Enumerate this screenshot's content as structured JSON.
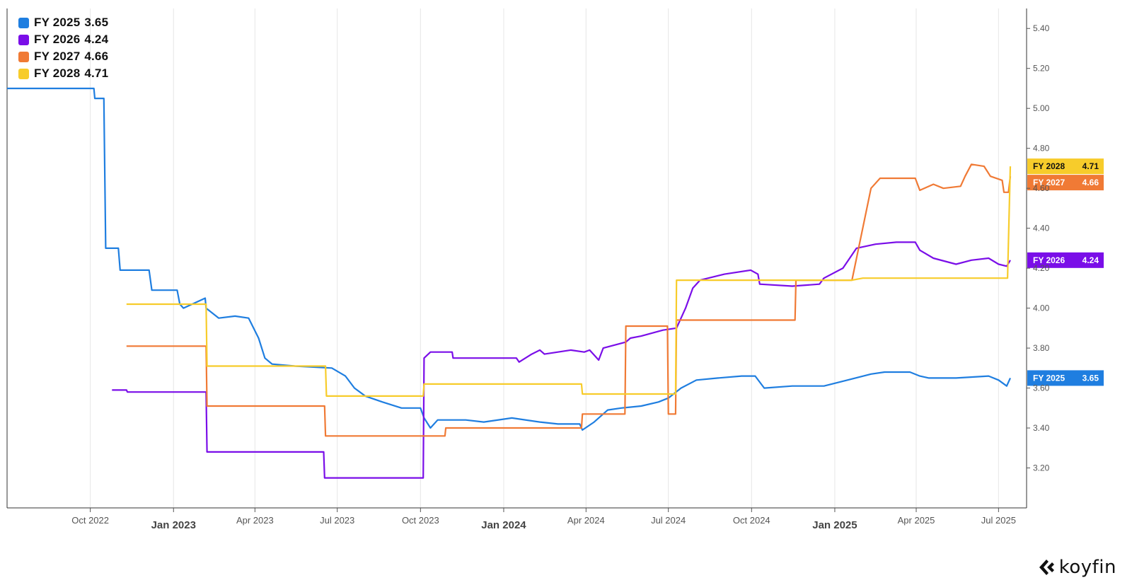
{
  "chart_data": {
    "type": "line",
    "x_axis": {
      "type": "date",
      "range": [
        "2022-07-01",
        "2025-08-01"
      ],
      "ticks": [
        {
          "date": "2022-10-01",
          "label": "Oct 2022",
          "major": false
        },
        {
          "date": "2023-01-01",
          "label": "Jan 2023",
          "major": true
        },
        {
          "date": "2023-04-01",
          "label": "Apr 2023",
          "major": false
        },
        {
          "date": "2023-07-01",
          "label": "Jul 2023",
          "major": false
        },
        {
          "date": "2023-10-01",
          "label": "Oct 2023",
          "major": false
        },
        {
          "date": "2024-01-01",
          "label": "Jan 2024",
          "major": true
        },
        {
          "date": "2024-04-01",
          "label": "Apr 2024",
          "major": false
        },
        {
          "date": "2024-07-01",
          "label": "Jul 2024",
          "major": false
        },
        {
          "date": "2024-10-01",
          "label": "Oct 2024",
          "major": false
        },
        {
          "date": "2025-01-01",
          "label": "Jan 2025",
          "major": true
        },
        {
          "date": "2025-04-01",
          "label": "Apr 2025",
          "major": false
        },
        {
          "date": "2025-07-01",
          "label": "Jul 2025",
          "major": false
        }
      ]
    },
    "y_axis": {
      "position": "right",
      "range": [
        3.0,
        5.5
      ],
      "ticks": [
        "5.40",
        "5.20",
        "5.00",
        "4.80",
        "4.60",
        "4.40",
        "4.20",
        "4.00",
        "3.80",
        "3.60",
        "3.40",
        "3.20"
      ]
    },
    "grid": "vertical",
    "legend_position": "top-left",
    "series": [
      {
        "name": "FY 2025",
        "last": "3.65",
        "color": "#1f7ee0",
        "points": [
          [
            "2022-07-01",
            5.1
          ],
          [
            "2022-10-05",
            5.1
          ],
          [
            "2022-10-06",
            5.05
          ],
          [
            "2022-10-16",
            5.05
          ],
          [
            "2022-10-18",
            4.3
          ],
          [
            "2022-11-01",
            4.3
          ],
          [
            "2022-11-03",
            4.19
          ],
          [
            "2022-12-05",
            4.19
          ],
          [
            "2022-12-08",
            4.09
          ],
          [
            "2023-01-05",
            4.09
          ],
          [
            "2023-01-08",
            4.02
          ],
          [
            "2023-01-12",
            4.0
          ],
          [
            "2023-02-05",
            4.05
          ],
          [
            "2023-02-06",
            4.0
          ],
          [
            "2023-02-20",
            3.95
          ],
          [
            "2023-03-10",
            3.96
          ],
          [
            "2023-03-25",
            3.95
          ],
          [
            "2023-04-05",
            3.85
          ],
          [
            "2023-04-12",
            3.75
          ],
          [
            "2023-04-20",
            3.72
          ],
          [
            "2023-05-15",
            3.71
          ],
          [
            "2023-06-25",
            3.7
          ],
          [
            "2023-07-10",
            3.66
          ],
          [
            "2023-07-20",
            3.6
          ],
          [
            "2023-08-01",
            3.56
          ],
          [
            "2023-08-20",
            3.53
          ],
          [
            "2023-09-10",
            3.5
          ],
          [
            "2023-10-01",
            3.5
          ],
          [
            "2023-10-05",
            3.45
          ],
          [
            "2023-10-12",
            3.4
          ],
          [
            "2023-10-20",
            3.44
          ],
          [
            "2023-11-20",
            3.44
          ],
          [
            "2023-12-10",
            3.43
          ],
          [
            "2024-01-10",
            3.45
          ],
          [
            "2024-02-10",
            3.43
          ],
          [
            "2024-03-01",
            3.42
          ],
          [
            "2024-03-25",
            3.42
          ],
          [
            "2024-03-28",
            3.39
          ],
          [
            "2024-04-10",
            3.43
          ],
          [
            "2024-04-25",
            3.49
          ],
          [
            "2024-05-10",
            3.5
          ],
          [
            "2024-06-01",
            3.51
          ],
          [
            "2024-06-20",
            3.53
          ],
          [
            "2024-07-01",
            3.55
          ],
          [
            "2024-07-15",
            3.6
          ],
          [
            "2024-08-01",
            3.64
          ],
          [
            "2024-08-25",
            3.65
          ],
          [
            "2024-09-20",
            3.66
          ],
          [
            "2024-10-05",
            3.66
          ],
          [
            "2024-10-15",
            3.6
          ],
          [
            "2024-11-15",
            3.61
          ],
          [
            "2024-12-20",
            3.61
          ],
          [
            "2025-01-15",
            3.64
          ],
          [
            "2025-02-10",
            3.67
          ],
          [
            "2025-02-25",
            3.68
          ],
          [
            "2025-03-25",
            3.68
          ],
          [
            "2025-04-05",
            3.66
          ],
          [
            "2025-04-15",
            3.65
          ],
          [
            "2025-05-15",
            3.65
          ],
          [
            "2025-06-20",
            3.66
          ],
          [
            "2025-07-01",
            3.64
          ],
          [
            "2025-07-10",
            3.61
          ],
          [
            "2025-07-14",
            3.65
          ]
        ]
      },
      {
        "name": "FY 2026",
        "last": "4.24",
        "color": "#7a0ee8",
        "points": [
          [
            "2022-10-25",
            3.59
          ],
          [
            "2022-11-10",
            3.59
          ],
          [
            "2022-11-11",
            3.58
          ],
          [
            "2023-02-06",
            3.58
          ],
          [
            "2023-02-07",
            3.28
          ],
          [
            "2023-06-16",
            3.28
          ],
          [
            "2023-06-17",
            3.15
          ],
          [
            "2023-10-04",
            3.15
          ],
          [
            "2023-10-05",
            3.75
          ],
          [
            "2023-10-12",
            3.78
          ],
          [
            "2023-11-05",
            3.78
          ],
          [
            "2023-11-06",
            3.75
          ],
          [
            "2024-01-15",
            3.75
          ],
          [
            "2024-01-18",
            3.73
          ],
          [
            "2024-02-01",
            3.77
          ],
          [
            "2024-02-10",
            3.79
          ],
          [
            "2024-02-15",
            3.77
          ],
          [
            "2024-03-15",
            3.79
          ],
          [
            "2024-03-30",
            3.78
          ],
          [
            "2024-04-05",
            3.79
          ],
          [
            "2024-04-15",
            3.74
          ],
          [
            "2024-04-20",
            3.8
          ],
          [
            "2024-05-15",
            3.83
          ],
          [
            "2024-05-20",
            3.85
          ],
          [
            "2024-06-01",
            3.86
          ],
          [
            "2024-06-25",
            3.89
          ],
          [
            "2024-07-10",
            3.9
          ],
          [
            "2024-07-20",
            4.0
          ],
          [
            "2024-07-28",
            4.1
          ],
          [
            "2024-08-05",
            4.14
          ],
          [
            "2024-09-01",
            4.17
          ],
          [
            "2024-09-30",
            4.19
          ],
          [
            "2024-10-08",
            4.17
          ],
          [
            "2024-10-10",
            4.12
          ],
          [
            "2024-11-15",
            4.11
          ],
          [
            "2024-12-15",
            4.12
          ],
          [
            "2024-12-20",
            4.15
          ],
          [
            "2025-01-10",
            4.2
          ],
          [
            "2025-01-25",
            4.3
          ],
          [
            "2025-02-15",
            4.32
          ],
          [
            "2025-03-10",
            4.33
          ],
          [
            "2025-03-31",
            4.33
          ],
          [
            "2025-04-05",
            4.29
          ],
          [
            "2025-04-20",
            4.25
          ],
          [
            "2025-05-15",
            4.22
          ],
          [
            "2025-06-01",
            4.24
          ],
          [
            "2025-06-20",
            4.25
          ],
          [
            "2025-07-01",
            4.22
          ],
          [
            "2025-07-10",
            4.21
          ],
          [
            "2025-07-14",
            4.24
          ]
        ]
      },
      {
        "name": "FY 2027",
        "last": "4.66",
        "color": "#f07a35",
        "points": [
          [
            "2022-11-10",
            3.81
          ],
          [
            "2023-02-06",
            3.81
          ],
          [
            "2023-02-07",
            3.51
          ],
          [
            "2023-06-17",
            3.51
          ],
          [
            "2023-06-18",
            3.36
          ],
          [
            "2023-10-28",
            3.36
          ],
          [
            "2023-10-29",
            3.4
          ],
          [
            "2024-03-27",
            3.4
          ],
          [
            "2024-03-28",
            3.47
          ],
          [
            "2024-05-14",
            3.47
          ],
          [
            "2024-05-15",
            3.91
          ],
          [
            "2024-06-30",
            3.91
          ],
          [
            "2024-07-01",
            3.47
          ],
          [
            "2024-07-09",
            3.47
          ],
          [
            "2024-07-10",
            3.94
          ],
          [
            "2024-11-18",
            3.94
          ],
          [
            "2024-11-19",
            4.14
          ],
          [
            "2025-01-20",
            4.14
          ],
          [
            "2025-02-10",
            4.6
          ],
          [
            "2025-02-20",
            4.65
          ],
          [
            "2025-03-31",
            4.65
          ],
          [
            "2025-04-05",
            4.59
          ],
          [
            "2025-04-20",
            4.62
          ],
          [
            "2025-05-01",
            4.6
          ],
          [
            "2025-05-20",
            4.61
          ],
          [
            "2025-05-25",
            4.66
          ],
          [
            "2025-06-01",
            4.72
          ],
          [
            "2025-06-15",
            4.71
          ],
          [
            "2025-06-22",
            4.66
          ],
          [
            "2025-07-05",
            4.64
          ],
          [
            "2025-07-07",
            4.58
          ],
          [
            "2025-07-12",
            4.58
          ],
          [
            "2025-07-14",
            4.66
          ]
        ]
      },
      {
        "name": "FY 2028",
        "last": "4.71",
        "color": "#f7cc2b",
        "points": [
          [
            "2022-11-10",
            4.02
          ],
          [
            "2023-02-06",
            4.02
          ],
          [
            "2023-02-07",
            3.71
          ],
          [
            "2023-06-18",
            3.71
          ],
          [
            "2023-06-19",
            3.56
          ],
          [
            "2023-10-04",
            3.56
          ],
          [
            "2023-10-05",
            3.62
          ],
          [
            "2024-03-27",
            3.62
          ],
          [
            "2024-03-28",
            3.57
          ],
          [
            "2024-07-09",
            3.57
          ],
          [
            "2024-07-10",
            4.14
          ],
          [
            "2025-01-20",
            4.14
          ],
          [
            "2025-02-01",
            4.15
          ],
          [
            "2025-07-11",
            4.15
          ],
          [
            "2025-07-14",
            4.71
          ]
        ]
      }
    ]
  },
  "brand": {
    "name": "koyfin"
  }
}
